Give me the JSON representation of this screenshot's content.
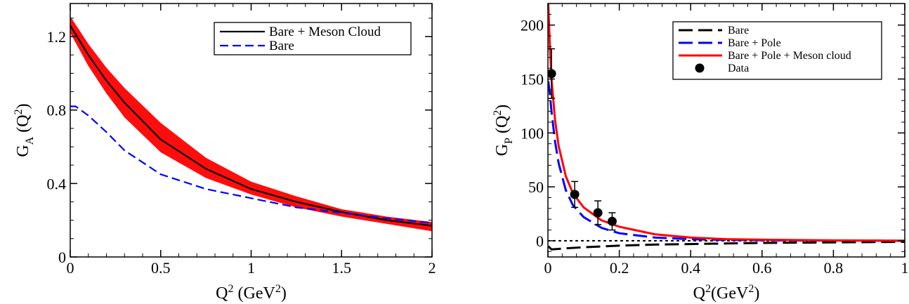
{
  "chart_data": [
    {
      "type": "line",
      "xlabel": "Q^2 (GeV^2)",
      "ylabel": "G_A (Q^2)",
      "xlim": [
        0,
        2
      ],
      "ylim": [
        0,
        1.38
      ],
      "xticks": [
        "0",
        "0.5",
        "1",
        "1.5",
        "2"
      ],
      "yticks": [
        "0",
        "0.4",
        "0.8",
        "1.2"
      ],
      "legend_position": "top-right",
      "band": {
        "color": "#ff0000",
        "x": [
          0,
          0.1,
          0.2,
          0.3,
          0.5,
          0.75,
          1.0,
          1.25,
          1.5,
          1.75,
          2.0
        ],
        "upper": [
          1.31,
          1.16,
          1.03,
          0.92,
          0.73,
          0.54,
          0.41,
          0.33,
          0.26,
          0.22,
          0.19
        ],
        "lower": [
          1.22,
          1.04,
          0.89,
          0.76,
          0.57,
          0.43,
          0.34,
          0.27,
          0.22,
          0.18,
          0.14
        ]
      },
      "series": [
        {
          "name": "Bare + Meson Cloud",
          "color": "#000000",
          "dash": "solid",
          "x": [
            0,
            0.1,
            0.2,
            0.3,
            0.5,
            0.75,
            1.0,
            1.25,
            1.5,
            1.75,
            2.0
          ],
          "y": [
            1.26,
            1.1,
            0.96,
            0.84,
            0.64,
            0.48,
            0.37,
            0.3,
            0.245,
            0.2,
            0.17
          ]
        },
        {
          "name": "Bare",
          "color": "#0000ff",
          "dash": "dashed",
          "x": [
            0,
            0.03,
            0.1,
            0.2,
            0.3,
            0.5,
            0.75,
            1.0,
            1.25,
            1.5,
            1.75,
            2.0
          ],
          "y": [
            0.82,
            0.82,
            0.77,
            0.68,
            0.58,
            0.45,
            0.37,
            0.32,
            0.27,
            0.24,
            0.21,
            0.185
          ]
        }
      ]
    },
    {
      "type": "line",
      "xlabel": "Q^2(GeV^2)",
      "ylabel": "G_P (Q^2)",
      "xlim": [
        0,
        1
      ],
      "ylim": [
        -15,
        220
      ],
      "xticks": [
        "0",
        "0.2",
        "0.4",
        "0.6",
        "0.8",
        "1"
      ],
      "yticks": [
        "0",
        "50",
        "100",
        "150",
        "200"
      ],
      "legend_position": "top-right",
      "series": [
        {
          "name": "Bare",
          "color": "#000000",
          "dash": "longdash",
          "x": [
            0.001,
            0.01,
            0.05,
            0.1,
            0.2,
            0.3,
            0.4,
            0.5,
            0.6,
            0.8,
            1.0
          ],
          "y": [
            -5,
            -8,
            -7,
            -6,
            -4.5,
            -3.5,
            -3,
            -2.5,
            -2,
            -1.5,
            -1
          ]
        },
        {
          "name": "Bare + Pole",
          "color": "#0000ff",
          "dash": "longdash",
          "x": [
            0.001,
            0.005,
            0.01,
            0.02,
            0.03,
            0.05,
            0.07,
            0.1,
            0.15,
            0.2,
            0.3,
            0.4,
            0.5,
            0.6,
            0.8,
            1.0
          ],
          "y": [
            148,
            138,
            120,
            92,
            72,
            47,
            33,
            22,
            12,
            7,
            3,
            1.5,
            0.8,
            0.5,
            0.2,
            0
          ]
        },
        {
          "name": "Bare + Pole + Meson cloud",
          "color": "#ff0000",
          "dash": "solid",
          "x": [
            0.001,
            0.005,
            0.01,
            0.02,
            0.03,
            0.05,
            0.07,
            0.1,
            0.15,
            0.2,
            0.3,
            0.4,
            0.5,
            0.6,
            0.8,
            1.0
          ],
          "y": [
            220,
            185,
            150,
            112,
            88,
            60,
            44,
            31,
            19,
            13,
            6,
            3,
            1.5,
            1,
            0.4,
            0.1
          ]
        }
      ],
      "data_points": {
        "name": "Data",
        "x": [
          0.01,
          0.075,
          0.14,
          0.18
        ],
        "y": [
          155,
          43,
          26,
          18
        ],
        "err": [
          23,
          12,
          11,
          8
        ]
      },
      "zero_line": true
    }
  ]
}
